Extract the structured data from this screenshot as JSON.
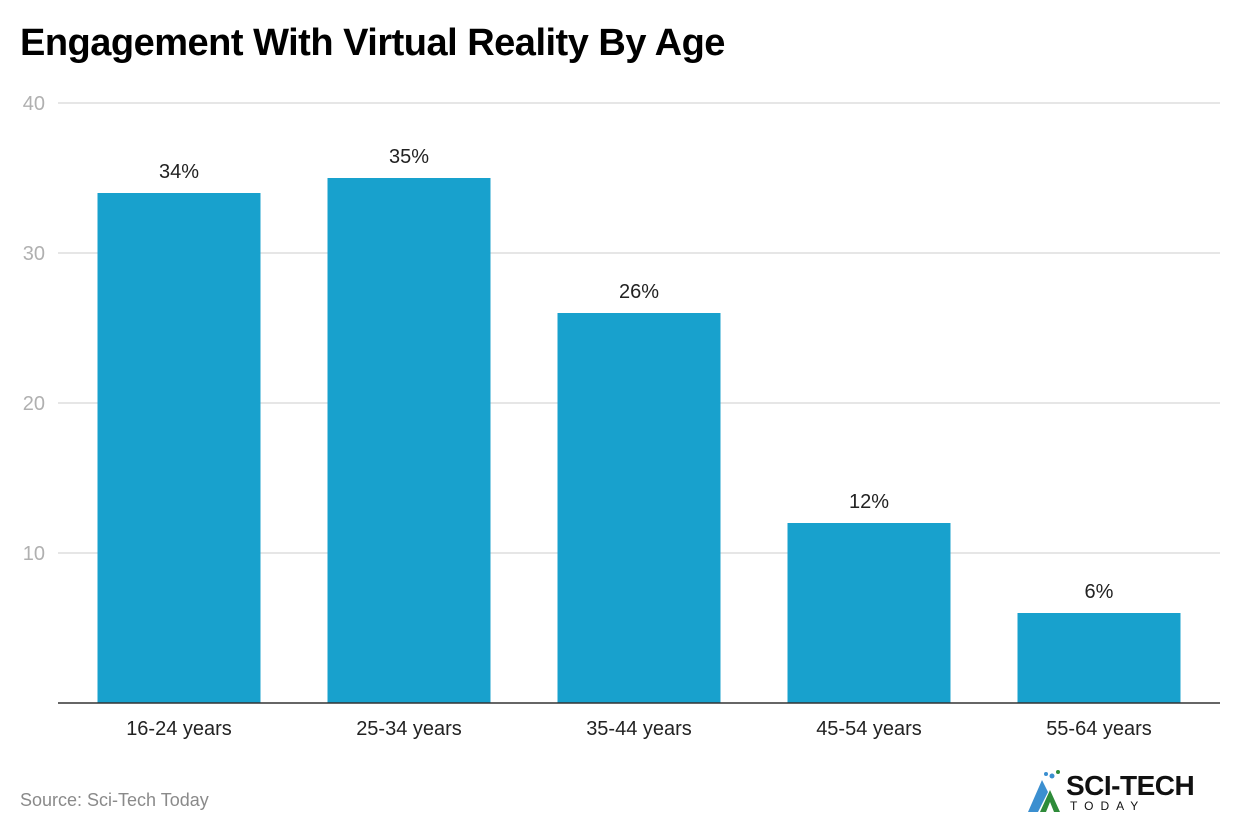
{
  "chart_data": {
    "type": "bar",
    "title": "Engagement With Virtual Reality By Age",
    "categories": [
      "16-24 years",
      "25-34 years",
      "35-44 years",
      "45-54 years",
      "55-64 years"
    ],
    "values": [
      34,
      35,
      26,
      12,
      6
    ],
    "data_labels": [
      "34%",
      "35%",
      "26%",
      "12%",
      "6%"
    ],
    "ylim": [
      0,
      40
    ],
    "yticks": [
      10,
      20,
      30,
      40
    ],
    "grid": true,
    "bar_color": "#18a1cd",
    "xlabel": "",
    "ylabel": ""
  },
  "source": "Source: Sci-Tech Today",
  "logo": {
    "main": "SCI-TECH",
    "sub": "TODAY"
  }
}
